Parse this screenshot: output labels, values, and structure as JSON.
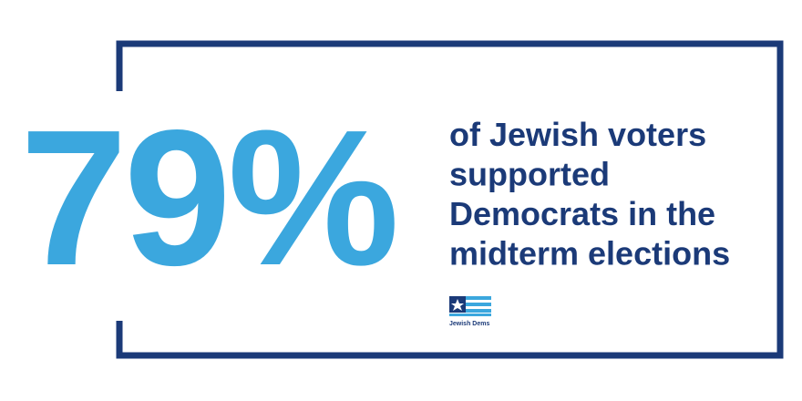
{
  "stat": "79%",
  "statement": {
    "lines": [
      "of Jewish voters",
      "supported",
      "Democrats in the",
      "midterm elections"
    ]
  },
  "logo": {
    "label": "Jewish Dems"
  }
}
